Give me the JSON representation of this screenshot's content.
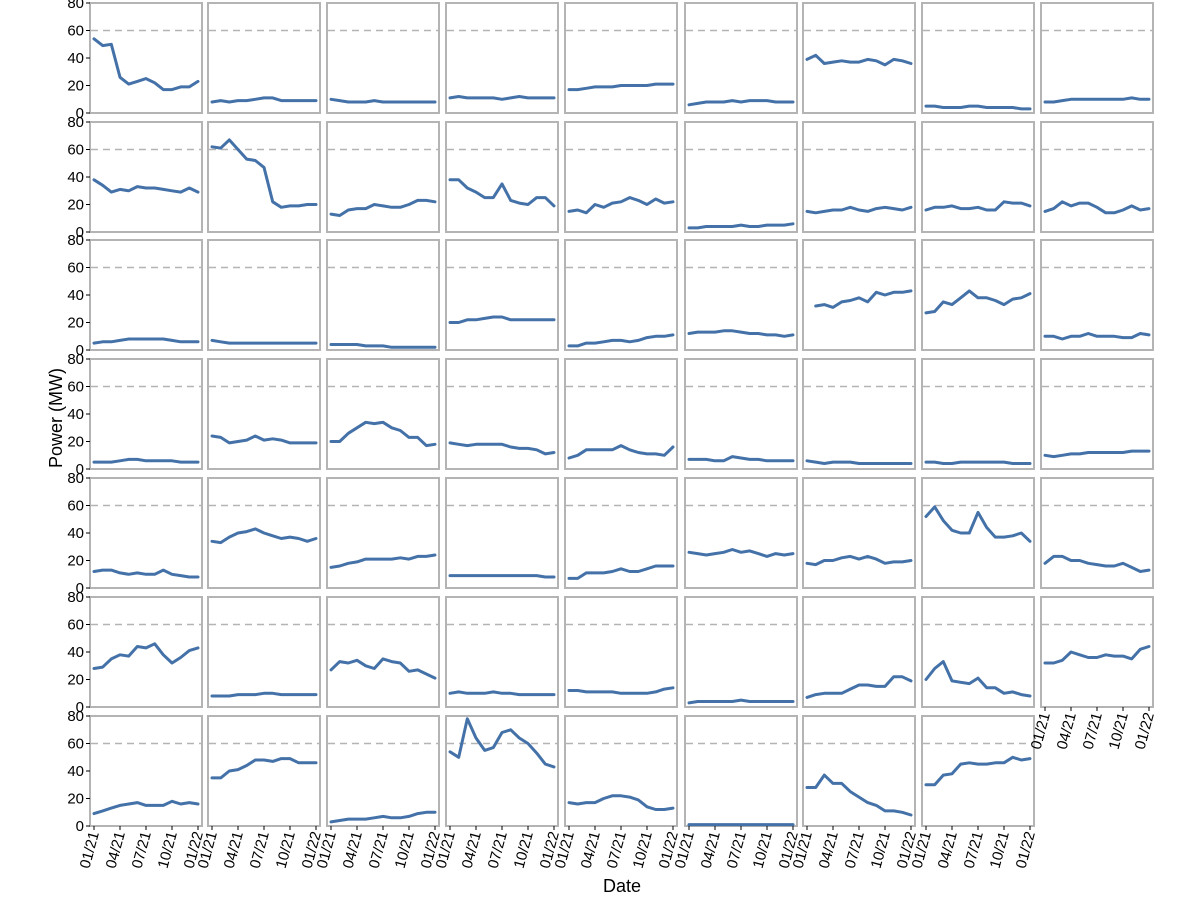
{
  "chart_data": {
    "type": "line",
    "layout": "small-multiples",
    "xlabel": "Date",
    "ylabel": "Power (MW)",
    "x_ticks": [
      "01/21",
      "04/21",
      "07/21",
      "10/21",
      "01/22"
    ],
    "x": [
      "2021-01",
      "2021-02",
      "2021-03",
      "2021-04",
      "2021-05",
      "2021-06",
      "2021-07",
      "2021-08",
      "2021-09",
      "2021-10",
      "2021-11",
      "2021-12",
      "2022-01"
    ],
    "ylim": [
      0,
      80
    ],
    "y_ticks": [
      0,
      20,
      40,
      60,
      80
    ],
    "reference_line": 60,
    "grid": false,
    "colors": {
      "line": "#4472a8",
      "panel_border": "#b4b4b4",
      "reference_line": "#b4b4b4"
    },
    "panels": [
      {
        "values": [
          54,
          49,
          50,
          26,
          21,
          23,
          25,
          22,
          17,
          17,
          19,
          19,
          23
        ]
      },
      {
        "values": [
          8,
          9,
          8,
          9,
          9,
          10,
          11,
          11,
          9,
          9,
          9,
          9,
          9
        ]
      },
      {
        "values": [
          10,
          9,
          8,
          8,
          8,
          9,
          8,
          8,
          8,
          8,
          8,
          8,
          8
        ]
      },
      {
        "values": [
          11,
          12,
          11,
          11,
          11,
          11,
          10,
          11,
          12,
          11,
          11,
          11,
          11
        ]
      },
      {
        "values": [
          17,
          17,
          18,
          19,
          19,
          19,
          20,
          20,
          20,
          20,
          21,
          21,
          21
        ]
      },
      {
        "values": [
          6,
          7,
          8,
          8,
          8,
          9,
          8,
          9,
          9,
          9,
          8,
          8,
          8
        ]
      },
      {
        "values": [
          39,
          42,
          36,
          37,
          38,
          37,
          37,
          39,
          38,
          35,
          39,
          38,
          36
        ]
      },
      {
        "values": [
          5,
          5,
          4,
          4,
          4,
          5,
          5,
          4,
          4,
          4,
          4,
          3,
          3
        ]
      },
      {
        "values": [
          8,
          8,
          9,
          10,
          10,
          10,
          10,
          10,
          10,
          10,
          11,
          10,
          10
        ]
      },
      {
        "values": [
          38,
          34,
          29,
          31,
          30,
          33,
          32,
          32,
          31,
          30,
          29,
          32,
          29
        ]
      },
      {
        "values": [
          62,
          61,
          67,
          60,
          53,
          52,
          47,
          22,
          18,
          19,
          19,
          20,
          20
        ]
      },
      {
        "values": [
          13,
          12,
          16,
          17,
          17,
          20,
          19,
          18,
          18,
          20,
          23,
          23,
          22
        ]
      },
      {
        "values": [
          38,
          38,
          32,
          29,
          25,
          25,
          35,
          23,
          21,
          20,
          25,
          25,
          19
        ]
      },
      {
        "values": [
          15,
          16,
          14,
          20,
          18,
          21,
          22,
          25,
          23,
          20,
          24,
          21,
          22
        ]
      },
      {
        "values": [
          3,
          3,
          4,
          4,
          4,
          4,
          5,
          4,
          4,
          5,
          5,
          5,
          6
        ]
      },
      {
        "values": [
          15,
          14,
          15,
          16,
          16,
          18,
          16,
          15,
          17,
          18,
          17,
          16,
          18
        ]
      },
      {
        "values": [
          16,
          18,
          18,
          19,
          17,
          17,
          18,
          16,
          16,
          22,
          21,
          21,
          19
        ]
      },
      {
        "values": [
          15,
          17,
          22,
          19,
          21,
          21,
          18,
          14,
          14,
          16,
          19,
          16,
          17
        ]
      },
      {
        "values": [
          5,
          6,
          6,
          7,
          8,
          8,
          8,
          8,
          8,
          7,
          6,
          6,
          6
        ]
      },
      {
        "values": [
          7,
          6,
          5,
          5,
          5,
          5,
          5,
          5,
          5,
          5,
          5,
          5,
          5
        ]
      },
      {
        "values": [
          4,
          4,
          4,
          4,
          3,
          3,
          3,
          2,
          2,
          2,
          2,
          2,
          2
        ]
      },
      {
        "values": [
          20,
          20,
          22,
          22,
          23,
          24,
          24,
          22,
          22,
          22,
          22,
          22,
          22
        ]
      },
      {
        "values": [
          3,
          3,
          5,
          5,
          6,
          7,
          7,
          6,
          7,
          9,
          10,
          10,
          11
        ]
      },
      {
        "values": [
          12,
          13,
          13,
          13,
          14,
          14,
          13,
          12,
          12,
          11,
          11,
          10,
          11
        ]
      },
      {
        "values": [
          null,
          32,
          33,
          31,
          35,
          36,
          38,
          35,
          42,
          40,
          42,
          42,
          43
        ]
      },
      {
        "values": [
          27,
          28,
          35,
          33,
          38,
          43,
          38,
          38,
          36,
          33,
          37,
          38,
          41
        ]
      },
      {
        "values": [
          10,
          10,
          8,
          10,
          10,
          12,
          10,
          10,
          10,
          9,
          9,
          12,
          11
        ]
      },
      {
        "values": [
          5,
          5,
          5,
          6,
          7,
          7,
          6,
          6,
          6,
          6,
          5,
          5,
          5
        ]
      },
      {
        "values": [
          24,
          23,
          19,
          20,
          21,
          24,
          21,
          22,
          21,
          19,
          19,
          19,
          19
        ]
      },
      {
        "values": [
          20,
          20,
          26,
          30,
          34,
          33,
          34,
          30,
          28,
          23,
          23,
          17,
          18
        ]
      },
      {
        "values": [
          19,
          18,
          17,
          18,
          18,
          18,
          18,
          16,
          15,
          15,
          14,
          11,
          12
        ]
      },
      {
        "values": [
          8,
          10,
          14,
          14,
          14,
          14,
          17,
          14,
          12,
          11,
          11,
          10,
          16
        ]
      },
      {
        "values": [
          7,
          7,
          7,
          6,
          6,
          9,
          8,
          7,
          7,
          6,
          6,
          6,
          6
        ]
      },
      {
        "values": [
          6,
          5,
          4,
          5,
          5,
          5,
          4,
          4,
          4,
          4,
          4,
          4,
          4
        ]
      },
      {
        "values": [
          5,
          5,
          4,
          4,
          5,
          5,
          5,
          5,
          5,
          5,
          4,
          4,
          4
        ]
      },
      {
        "values": [
          10,
          9,
          10,
          11,
          11,
          12,
          12,
          12,
          12,
          12,
          13,
          13,
          13
        ]
      },
      {
        "values": [
          12,
          13,
          13,
          11,
          10,
          11,
          10,
          10,
          13,
          10,
          9,
          8,
          8
        ]
      },
      {
        "values": [
          34,
          33,
          37,
          40,
          41,
          43,
          40,
          38,
          36,
          37,
          36,
          34,
          36
        ]
      },
      {
        "values": [
          15,
          16,
          18,
          19,
          21,
          21,
          21,
          21,
          22,
          21,
          23,
          23,
          24
        ]
      },
      {
        "values": [
          9,
          9,
          9,
          9,
          9,
          9,
          9,
          9,
          9,
          9,
          9,
          8,
          8
        ]
      },
      {
        "values": [
          7,
          7,
          11,
          11,
          11,
          12,
          14,
          12,
          12,
          14,
          16,
          16,
          16
        ]
      },
      {
        "values": [
          26,
          25,
          24,
          25,
          26,
          28,
          26,
          27,
          25,
          23,
          25,
          24,
          25
        ]
      },
      {
        "values": [
          18,
          17,
          20,
          20,
          22,
          23,
          21,
          23,
          21,
          18,
          19,
          19,
          20
        ]
      },
      {
        "values": [
          52,
          59,
          49,
          42,
          40,
          40,
          55,
          44,
          37,
          37,
          38,
          40,
          34
        ]
      },
      {
        "values": [
          18,
          23,
          23,
          20,
          20,
          18,
          17,
          16,
          16,
          18,
          15,
          12,
          13
        ]
      },
      {
        "values": [
          28,
          29,
          35,
          38,
          37,
          44,
          43,
          46,
          38,
          32,
          36,
          41,
          43
        ]
      },
      {
        "values": [
          8,
          8,
          8,
          9,
          9,
          9,
          10,
          10,
          9,
          9,
          9,
          9,
          9
        ]
      },
      {
        "values": [
          27,
          33,
          32,
          34,
          30,
          28,
          35,
          33,
          32,
          26,
          27,
          24,
          21
        ]
      },
      {
        "values": [
          10,
          11,
          10,
          10,
          10,
          11,
          10,
          10,
          9,
          9,
          9,
          9,
          9
        ]
      },
      {
        "values": [
          12,
          12,
          11,
          11,
          11,
          11,
          10,
          10,
          10,
          10,
          11,
          13,
          14
        ]
      },
      {
        "values": [
          3,
          4,
          4,
          4,
          4,
          4,
          5,
          4,
          4,
          4,
          4,
          4,
          4
        ]
      },
      {
        "values": [
          7,
          9,
          10,
          10,
          10,
          13,
          16,
          16,
          15,
          15,
          22,
          22,
          19
        ]
      },
      {
        "values": [
          20,
          28,
          33,
          19,
          18,
          17,
          21,
          14,
          14,
          10,
          11,
          9,
          8
        ]
      },
      {
        "values": [
          32,
          32,
          34,
          40,
          38,
          36,
          36,
          38,
          37,
          37,
          35,
          42,
          44
        ]
      },
      {
        "values": [
          9,
          11,
          13,
          15,
          16,
          17,
          15,
          15,
          15,
          18,
          16,
          17,
          16
        ]
      },
      {
        "values": [
          35,
          35,
          40,
          41,
          44,
          48,
          48,
          47,
          49,
          49,
          46,
          46,
          46
        ]
      },
      {
        "values": [
          3,
          4,
          5,
          5,
          5,
          6,
          7,
          6,
          6,
          7,
          9,
          10,
          10
        ]
      },
      {
        "values": [
          54,
          50,
          78,
          64,
          55,
          57,
          68,
          70,
          64,
          60,
          53,
          45,
          43
        ]
      },
      {
        "values": [
          17,
          16,
          17,
          17,
          20,
          22,
          22,
          21,
          19,
          14,
          12,
          12,
          13
        ]
      },
      {
        "values": [
          1,
          1,
          1,
          1,
          1,
          1,
          1,
          1,
          1,
          1,
          1,
          1,
          1
        ]
      },
      {
        "values": [
          28,
          28,
          37,
          31,
          31,
          25,
          21,
          17,
          15,
          11,
          11,
          10,
          8
        ]
      },
      {
        "values": [
          30,
          30,
          37,
          38,
          45,
          46,
          45,
          45,
          46,
          46,
          50,
          48,
          49
        ]
      }
    ]
  }
}
